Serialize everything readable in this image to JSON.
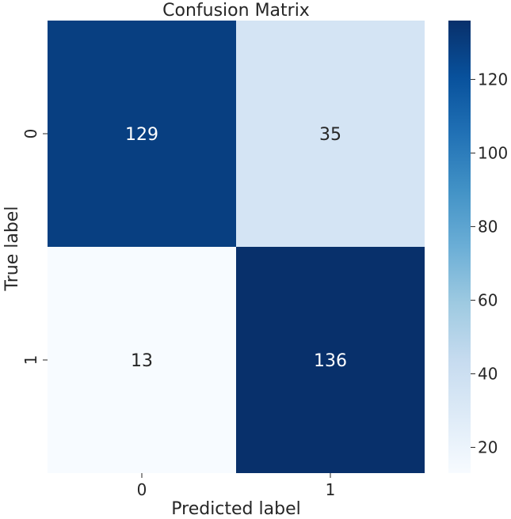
{
  "chart_data": {
    "type": "heatmap",
    "title": "Confusion Matrix",
    "xlabel": "Predicted label",
    "ylabel": "True label",
    "x_categories": [
      "0",
      "1"
    ],
    "y_categories": [
      "0",
      "1"
    ],
    "values": [
      [
        129,
        35
      ],
      [
        13,
        136
      ]
    ],
    "colormap": "Blues",
    "vmin": 13,
    "vmax": 136,
    "colorbar_ticks": [
      20,
      40,
      60,
      80,
      100,
      120
    ]
  }
}
